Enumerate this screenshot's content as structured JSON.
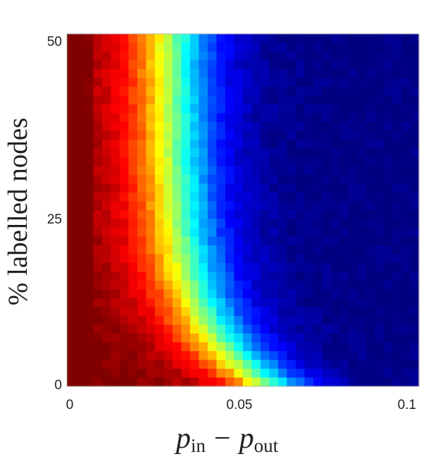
{
  "chart_data": {
    "type": "heatmap",
    "title": "",
    "xlabel": {
      "symbol": "p",
      "sub1": "in",
      "operator": "−",
      "sub2": "out"
    },
    "ylabel": "% labelled nodes",
    "xlim": [
      0,
      0.1
    ],
    "ylim": [
      0,
      50
    ],
    "x_ticks": [
      "0",
      "0.05",
      "0.1"
    ],
    "y_ticks": [
      "50",
      "25",
      "0"
    ],
    "colormap": "jet",
    "grid_cols": 40,
    "grid_rows": 40,
    "description_values": "cell value v in [0,1]: 1 = dark red (left), 0 = dark blue (right); transition boundary x_c(y) ≈ 0.03 + 0.028*exp(-y/9) with width 0.0125",
    "boundary": {
      "base": 0.03,
      "amplitude": 0.028,
      "decay": 9,
      "width": 0.0125
    }
  }
}
